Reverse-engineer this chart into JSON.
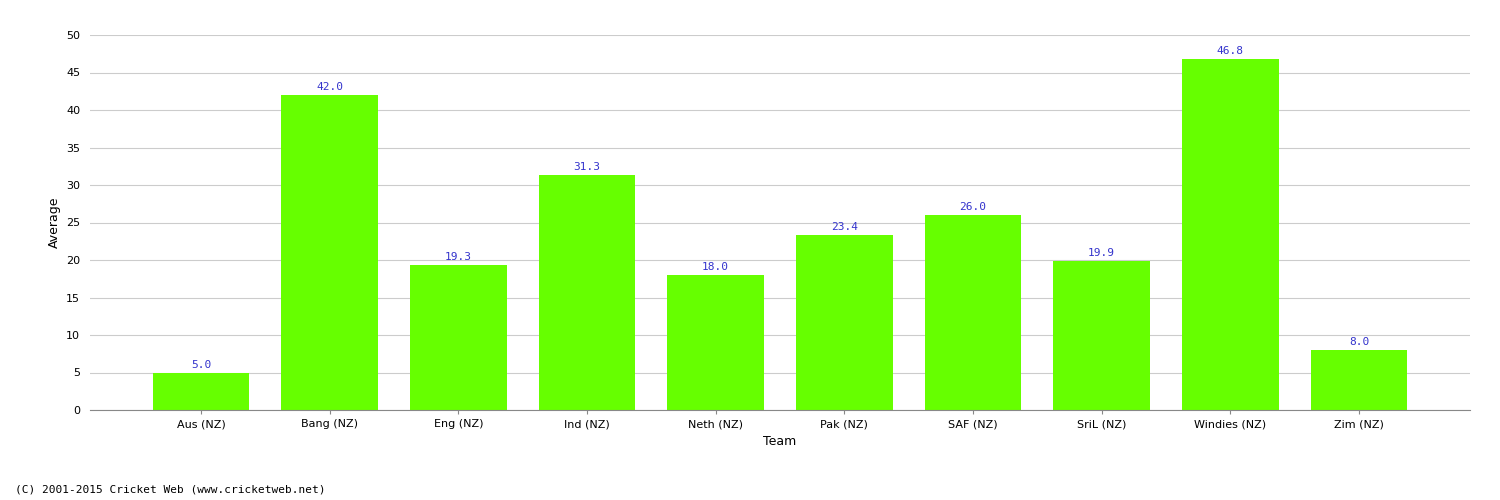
{
  "categories": [
    "Aus (NZ)",
    "Bang (NZ)",
    "Eng (NZ)",
    "Ind (NZ)",
    "Neth (NZ)",
    "Pak (NZ)",
    "SAF (NZ)",
    "SriL (NZ)",
    "Windies (NZ)",
    "Zim (NZ)"
  ],
  "values": [
    5.0,
    42.0,
    19.3,
    31.3,
    18.0,
    23.4,
    26.0,
    19.9,
    46.8,
    8.0
  ],
  "bar_color": "#66ff00",
  "label_color": "#3333cc",
  "title": "",
  "xlabel": "Team",
  "ylabel": "Average",
  "ylim": [
    0,
    50
  ],
  "yticks": [
    0,
    5,
    10,
    15,
    20,
    25,
    30,
    35,
    40,
    45,
    50
  ],
  "grid_color": "#cccccc",
  "background_color": "#ffffff",
  "footer": "(C) 2001-2015 Cricket Web (www.cricketweb.net)",
  "label_fontsize": 8,
  "axis_label_fontsize": 9,
  "tick_fontsize": 8,
  "footer_fontsize": 8,
  "bar_width": 0.75
}
